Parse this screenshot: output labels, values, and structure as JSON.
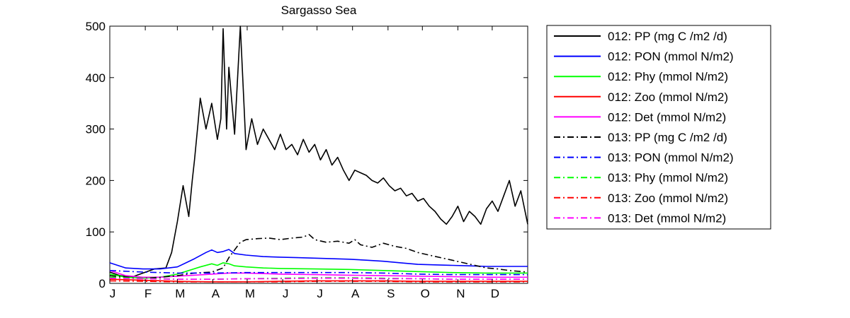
{
  "chart_data": {
    "type": "line",
    "title": "Sargasso Sea",
    "xlabel": "",
    "ylabel": "",
    "x_ticks": [
      "J",
      "F",
      "M",
      "A",
      "M",
      "J",
      "J",
      "A",
      "S",
      "O",
      "N",
      "D"
    ],
    "x_tick_days": [
      1,
      32,
      60,
      91,
      121,
      152,
      182,
      213,
      244,
      274,
      305,
      335
    ],
    "xlim": [
      1,
      366
    ],
    "ylim": [
      0,
      500
    ],
    "y_ticks": [
      "0",
      "100",
      "200",
      "300",
      "400",
      "500"
    ],
    "grid": false,
    "legend_position": "outside-right",
    "series": [
      {
        "name": "012: PP (mg C /m2 /d)",
        "color": "#000000",
        "style": "solid",
        "x": [
          1,
          10,
          20,
          30,
          40,
          50,
          55,
          60,
          65,
          70,
          73,
          75,
          78,
          80,
          85,
          90,
          95,
          98,
          100,
          103,
          105,
          110,
          115,
          120,
          125,
          130,
          135,
          140,
          145,
          150,
          155,
          160,
          165,
          170,
          175,
          180,
          185,
          190,
          195,
          200,
          205,
          210,
          215,
          220,
          225,
          230,
          235,
          240,
          245,
          250,
          255,
          260,
          265,
          270,
          275,
          280,
          285,
          290,
          295,
          300,
          305,
          310,
          315,
          320,
          325,
          330,
          335,
          340,
          345,
          350,
          355,
          360,
          366
        ],
        "y": [
          22,
          15,
          12,
          20,
          28,
          30,
          60,
          120,
          190,
          130,
          200,
          240,
          310,
          360,
          300,
          350,
          280,
          320,
          495,
          300,
          420,
          290,
          500,
          260,
          320,
          270,
          300,
          280,
          260,
          290,
          260,
          270,
          250,
          280,
          255,
          270,
          240,
          260,
          230,
          245,
          220,
          200,
          220,
          215,
          210,
          200,
          195,
          205,
          190,
          180,
          185,
          170,
          175,
          160,
          165,
          150,
          140,
          125,
          115,
          130,
          150,
          120,
          140,
          130,
          115,
          145,
          160,
          140,
          170,
          200,
          150,
          180,
          115
        ]
      },
      {
        "name": "012: PON (mmol N/m2)",
        "color": "#0000ff",
        "style": "solid",
        "x": [
          1,
          15,
          30,
          45,
          60,
          75,
          85,
          90,
          95,
          100,
          105,
          110,
          120,
          135,
          150,
          165,
          180,
          195,
          210,
          225,
          240,
          255,
          270,
          285,
          300,
          315,
          330,
          345,
          366
        ],
        "y": [
          40,
          30,
          28,
          28,
          32,
          48,
          60,
          65,
          60,
          62,
          66,
          58,
          55,
          52,
          51,
          50,
          49,
          48,
          47,
          45,
          43,
          40,
          37,
          36,
          35,
          34,
          33,
          33,
          33
        ]
      },
      {
        "name": "012: Phy (mmol N/m2)",
        "color": "#00ff00",
        "style": "solid",
        "x": [
          1,
          15,
          30,
          45,
          60,
          70,
          80,
          90,
          95,
          100,
          105,
          110,
          120,
          135,
          150,
          180,
          210,
          240,
          270,
          300,
          330,
          366
        ],
        "y": [
          18,
          12,
          10,
          12,
          18,
          25,
          32,
          38,
          35,
          40,
          38,
          34,
          32,
          30,
          29,
          28,
          27,
          25,
          23,
          21,
          20,
          20
        ]
      },
      {
        "name": "012: Zoo (mmol N/m2)",
        "color": "#ff0000",
        "style": "solid",
        "x": [
          1,
          30,
          60,
          90,
          120,
          150,
          180,
          210,
          240,
          270,
          300,
          330,
          366
        ],
        "y": [
          8,
          6,
          4,
          3,
          3,
          4,
          5,
          5,
          5,
          4,
          4,
          4,
          4
        ]
      },
      {
        "name": "012: Det (mmol N/m2)",
        "color": "#ff00ff",
        "style": "solid",
        "x": [
          1,
          15,
          30,
          45,
          60,
          75,
          90,
          105,
          120,
          150,
          180,
          210,
          240,
          270,
          300,
          330,
          366
        ],
        "y": [
          25,
          15,
          12,
          12,
          14,
          16,
          18,
          20,
          20,
          18,
          17,
          16,
          15,
          14,
          13,
          12,
          12
        ]
      },
      {
        "name": "013: PP (mg C /m2 /d)",
        "color": "#000000",
        "style": "dashdot",
        "x": [
          1,
          15,
          30,
          45,
          60,
          75,
          90,
          100,
          105,
          110,
          115,
          120,
          130,
          140,
          150,
          160,
          170,
          175,
          180,
          190,
          200,
          210,
          215,
          220,
          230,
          240,
          250,
          260,
          270,
          280,
          290,
          300,
          310,
          320,
          330,
          340,
          350,
          366
        ],
        "y": [
          15,
          12,
          10,
          12,
          15,
          20,
          22,
          30,
          50,
          65,
          80,
          85,
          87,
          88,
          85,
          88,
          90,
          95,
          85,
          80,
          82,
          78,
          85,
          75,
          70,
          78,
          72,
          68,
          60,
          55,
          50,
          45,
          40,
          35,
          30,
          28,
          25,
          22
        ]
      },
      {
        "name": "013: PON (mmol N/m2)",
        "color": "#0000ff",
        "style": "dashdot",
        "x": [
          1,
          30,
          60,
          90,
          120,
          150,
          180,
          210,
          240,
          270,
          300,
          330,
          366
        ],
        "y": [
          25,
          22,
          20,
          20,
          21,
          21,
          21,
          21,
          20,
          18,
          17,
          17,
          17
        ]
      },
      {
        "name": "013: Phy (mmol N/m2)",
        "color": "#00ff00",
        "style": "dashdot",
        "x": [
          1,
          30,
          60,
          90,
          120,
          150,
          180,
          210,
          240,
          270,
          300,
          330,
          366
        ],
        "y": [
          12,
          10,
          8,
          8,
          9,
          10,
          11,
          11,
          10,
          9,
          8,
          8,
          8
        ]
      },
      {
        "name": "013: Zoo (mmol N/m2)",
        "color": "#ff0000",
        "style": "dashdot",
        "x": [
          1,
          30,
          60,
          90,
          120,
          150,
          180,
          210,
          240,
          270,
          300,
          330,
          366
        ],
        "y": [
          5,
          4,
          3,
          3,
          3,
          3,
          4,
          4,
          4,
          3,
          3,
          3,
          3
        ]
      },
      {
        "name": "013: Det (mmol N/m2)",
        "color": "#ff00ff",
        "style": "dashdot",
        "x": [
          1,
          30,
          60,
          90,
          120,
          150,
          180,
          210,
          240,
          270,
          300,
          330,
          366
        ],
        "y": [
          10,
          9,
          8,
          8,
          9,
          9,
          10,
          10,
          9,
          9,
          8,
          8,
          8
        ]
      }
    ]
  }
}
